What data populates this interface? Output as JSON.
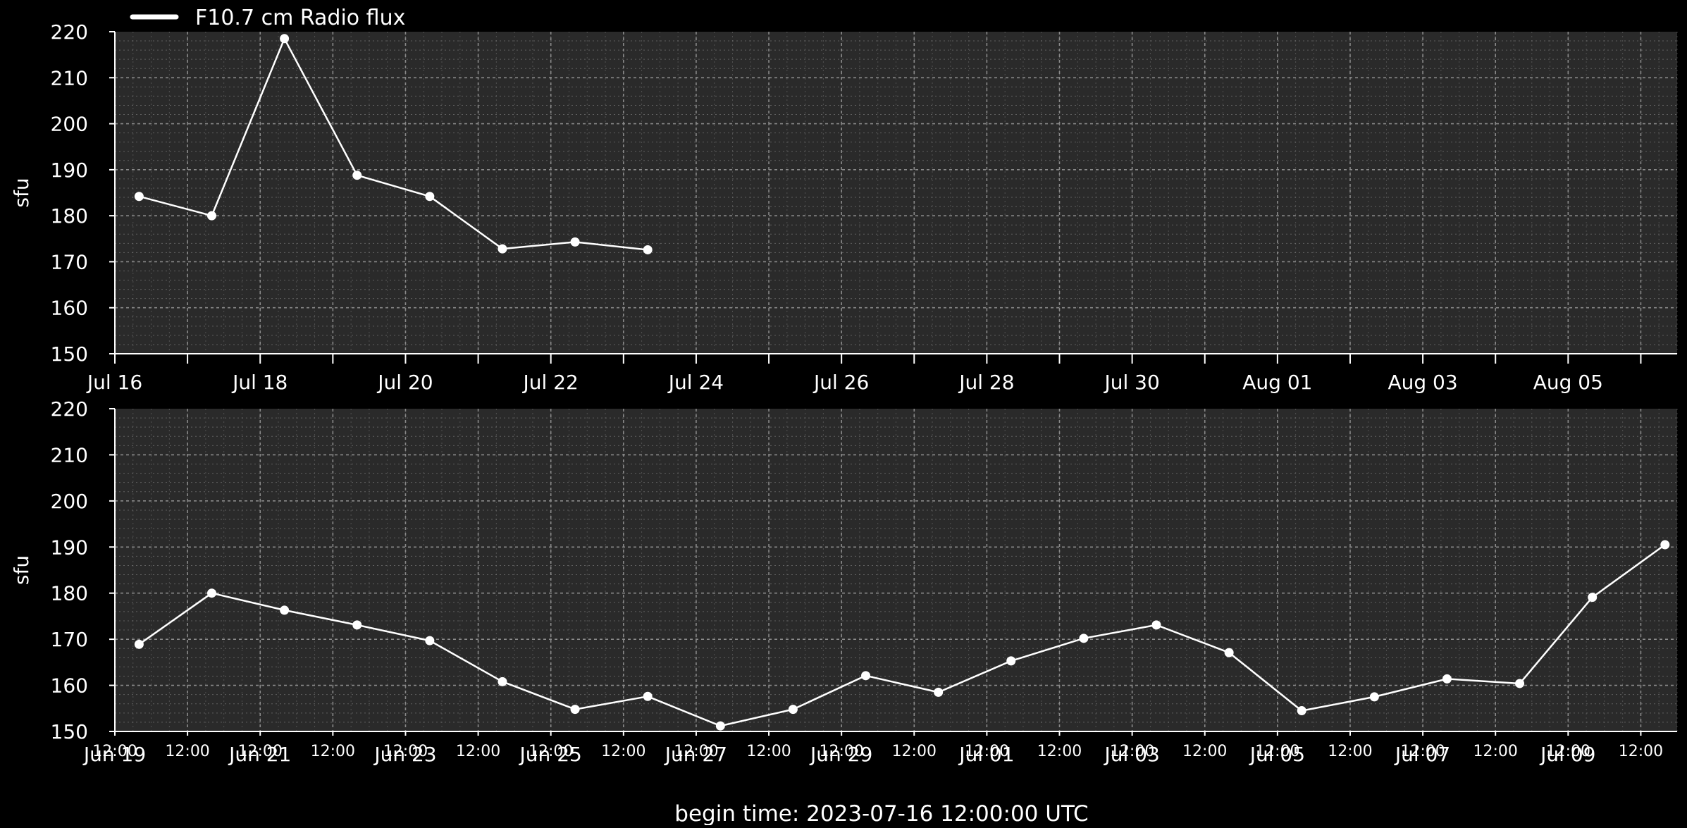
{
  "colors": {
    "background": "#000000",
    "plot_background": "#2a2a2a",
    "foreground": "#ffffff",
    "grid": "#8a8a8a"
  },
  "legend": {
    "label": "F10.7 cm Radio flux"
  },
  "footer": {
    "text": "begin time: 2023-07-16 12:00:00 UTC"
  },
  "chart_data": [
    {
      "type": "line",
      "title": "",
      "xlabel": "",
      "ylabel": "sfu",
      "grid": true,
      "legend_position": "top-left",
      "ylim": [
        150,
        220
      ],
      "yticks": [
        150,
        160,
        170,
        180,
        190,
        200,
        210,
        220
      ],
      "xlim": [
        "2023-07-16T00:00",
        "2023-08-06T12:00"
      ],
      "xtick_labels": [
        "Jul 16",
        "Jul 18",
        "Jul 20",
        "Jul 22",
        "Jul 24",
        "Jul 26",
        "Jul 28",
        "Jul 30",
        "Aug 01",
        "Aug 03",
        "Aug 05"
      ],
      "series": [
        {
          "name": "F10.7 cm Radio flux",
          "x": [
            "2023-07-16T08:00",
            "2023-07-17T08:00",
            "2023-07-18T08:00",
            "2023-07-19T08:00",
            "2023-07-20T08:00",
            "2023-07-21T08:00",
            "2023-07-22T08:00",
            "2023-07-23T08:00"
          ],
          "y": [
            184.2,
            180.0,
            218.5,
            188.8,
            184.2,
            172.8,
            174.3,
            172.6
          ]
        }
      ]
    },
    {
      "type": "line",
      "title": "",
      "xlabel": "",
      "ylabel": "sfu",
      "grid": true,
      "ylim": [
        150,
        220
      ],
      "yticks": [
        150,
        160,
        170,
        180,
        190,
        200,
        210,
        220
      ],
      "xlim": [
        "2023-06-19T00:00",
        "2023-07-10T12:00"
      ],
      "xtick_labels": [
        [
          "12:00",
          "Jun 19"
        ],
        [
          "12:00",
          ""
        ],
        [
          "12:00",
          "Jun 21"
        ],
        [
          "12:00",
          ""
        ],
        [
          "12:00",
          "Jun 23"
        ],
        [
          "12:00",
          ""
        ],
        [
          "12:00",
          "Jun 25"
        ],
        [
          "12:00",
          ""
        ],
        [
          "12:00",
          "Jun 27"
        ],
        [
          "12:00",
          ""
        ],
        [
          "12:00",
          "Jun 29"
        ],
        [
          "12:00",
          ""
        ],
        [
          "12:00",
          "Jul 01"
        ],
        [
          "12:00",
          ""
        ],
        [
          "12:00",
          "Jul 03"
        ],
        [
          "12:00",
          ""
        ],
        [
          "12:00",
          "Jul 05"
        ],
        [
          "12:00",
          ""
        ],
        [
          "12:00",
          "Jul 07"
        ],
        [
          "12:00",
          ""
        ],
        [
          "12:00",
          "Jul 09"
        ],
        [
          "12:00",
          ""
        ]
      ],
      "series": [
        {
          "name": "F10.7 cm Radio flux",
          "x": [
            "2023-06-19T08:00",
            "2023-06-20T08:00",
            "2023-06-21T08:00",
            "2023-06-22T08:00",
            "2023-06-23T08:00",
            "2023-06-24T08:00",
            "2023-06-25T08:00",
            "2023-06-26T08:00",
            "2023-06-27T08:00",
            "2023-06-28T08:00",
            "2023-06-29T08:00",
            "2023-06-30T08:00",
            "2023-07-01T08:00",
            "2023-07-02T08:00",
            "2023-07-03T08:00",
            "2023-07-04T08:00",
            "2023-07-05T08:00",
            "2023-07-06T08:00",
            "2023-07-07T08:00",
            "2023-07-08T08:00",
            "2023-07-09T08:00",
            "2023-07-10T08:00"
          ],
          "y": [
            168.9,
            180.0,
            176.3,
            173.1,
            169.7,
            160.8,
            154.8,
            157.6,
            151.2,
            154.8,
            162.1,
            158.5,
            165.3,
            170.2,
            173.1,
            167.1,
            154.5,
            157.5,
            161.4,
            160.4,
            179.1,
            190.5
          ]
        }
      ]
    }
  ]
}
